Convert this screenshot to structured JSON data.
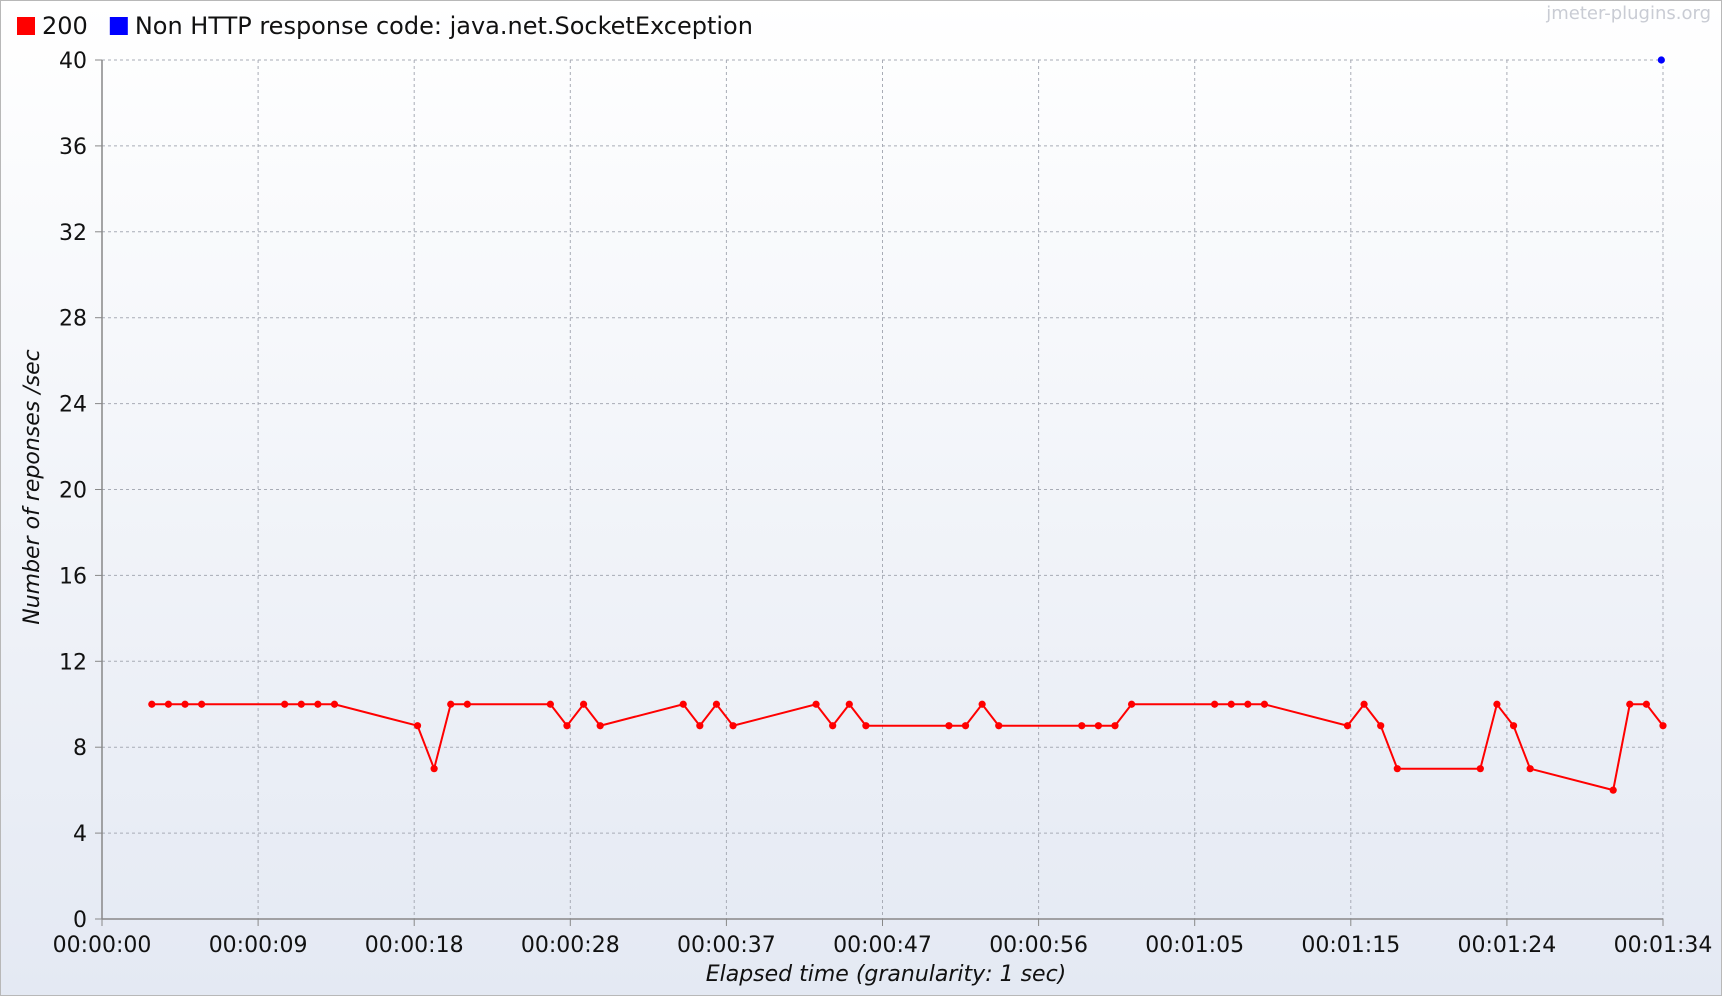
{
  "watermark": "jmeter-plugins.org",
  "chart_data": {
    "type": "line",
    "xlabel": "Elapsed time (granularity: 1 sec)",
    "ylabel": "Number of reponses /sec",
    "xlim": [
      0,
      94
    ],
    "ylim": [
      0,
      40
    ],
    "yticks": [
      0,
      4,
      8,
      12,
      16,
      20,
      24,
      28,
      32,
      36,
      40
    ],
    "xticks": [
      {
        "t": 0,
        "label": "00:00:00"
      },
      {
        "t": 9.4,
        "label": "00:00:09"
      },
      {
        "t": 18.8,
        "label": "00:00:18"
      },
      {
        "t": 28.2,
        "label": "00:00:28"
      },
      {
        "t": 37.6,
        "label": "00:00:37"
      },
      {
        "t": 47,
        "label": "00:00:47"
      },
      {
        "t": 56.4,
        "label": "00:00:56"
      },
      {
        "t": 65.8,
        "label": "00:01:05"
      },
      {
        "t": 75.2,
        "label": "00:01:15"
      },
      {
        "t": 84.6,
        "label": "00:01:24"
      },
      {
        "t": 94,
        "label": "00:01:34"
      }
    ],
    "grid": true,
    "legend_position": "top-left",
    "series": [
      {
        "name": "200",
        "color": "#ff0000",
        "x": [
          3,
          4,
          5,
          6,
          11,
          12,
          13,
          14,
          19,
          20,
          21,
          22,
          27,
          28,
          29,
          30,
          35,
          36,
          37,
          38,
          43,
          44,
          45,
          46,
          51,
          52,
          53,
          54,
          59,
          60,
          61,
          62,
          67,
          68,
          69,
          70,
          75,
          76,
          77,
          78,
          83,
          84,
          85,
          86,
          91,
          92,
          93,
          94
        ],
        "y": [
          10,
          10,
          10,
          10,
          10,
          10,
          10,
          10,
          9,
          7,
          10,
          10,
          10,
          9,
          10,
          9,
          10,
          9,
          10,
          9,
          10,
          9,
          10,
          9,
          9,
          9,
          10,
          9,
          9,
          9,
          9,
          10,
          10,
          10,
          10,
          10,
          9,
          10,
          9,
          7,
          7,
          10,
          9,
          7,
          6,
          10,
          10,
          9
        ]
      },
      {
        "name": "Non HTTP response code: java.net.SocketException",
        "color": "#0000ff",
        "x": [
          93.9
        ],
        "y": [
          40
        ]
      }
    ]
  }
}
